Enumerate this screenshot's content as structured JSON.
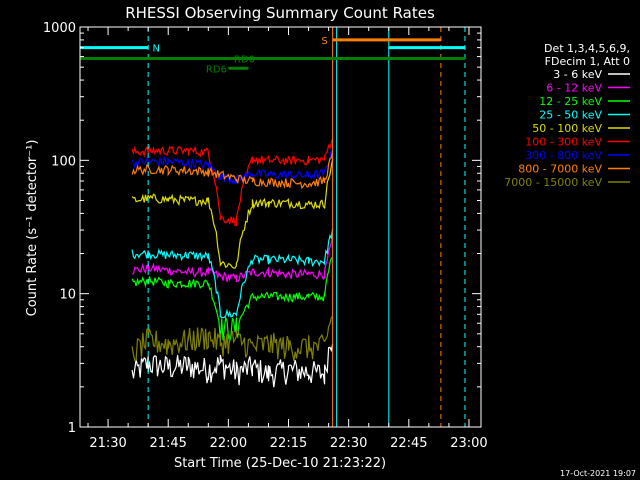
{
  "chart_data": {
    "type": "line",
    "title": "RHESSI Observing Summary Count Rates",
    "xlabel": "Start Time (25-Dec-10 21:23:22)",
    "ylabel": "Count Rate (s⁻¹ detector⁻¹)",
    "y_scale": "log",
    "ylim": [
      1,
      1000
    ],
    "xlim": [
      "21:23",
      "23:03"
    ],
    "x_ticks": [
      "21:30",
      "21:45",
      "22:00",
      "22:15",
      "22:30",
      "22:45",
      "23:00"
    ],
    "y_ticks": [
      "1",
      "10",
      "100",
      "1000"
    ],
    "grid": false,
    "legend_position": "right",
    "legend_header": [
      "Det 1,3,4,5,6,9,",
      "FDecim 1, Att 0"
    ],
    "series": [
      {
        "name": "3 - 6 keV",
        "color": "#ffffff",
        "x": [
          "21:36",
          "21:40",
          "21:45",
          "21:50",
          "21:55",
          "21:58",
          "22:02",
          "22:06",
          "22:10",
          "22:15",
          "22:20",
          "22:24",
          "22:26"
        ],
        "y": [
          2.5,
          3.0,
          2.8,
          2.9,
          2.7,
          3.0,
          2.6,
          2.8,
          2.5,
          2.7,
          2.6,
          2.5,
          5
        ]
      },
      {
        "name": "6 - 12 keV",
        "color": "#ff00ff",
        "x": [
          "21:36",
          "21:40",
          "21:45",
          "21:50",
          "21:55",
          "21:58",
          "22:02",
          "22:06",
          "22:10",
          "22:15",
          "22:20",
          "22:24",
          "22:26"
        ],
        "y": [
          15,
          15.5,
          15,
          14.5,
          14.5,
          13.5,
          13,
          14.5,
          14.5,
          14,
          14,
          14,
          25
        ]
      },
      {
        "name": "12 - 25 keV",
        "color": "#00ff00",
        "x": [
          "21:36",
          "21:40",
          "21:45",
          "21:50",
          "21:55",
          "21:58",
          "22:02",
          "22:06",
          "22:10",
          "22:15",
          "22:20",
          "22:24",
          "22:26"
        ],
        "y": [
          12,
          12.5,
          12,
          12,
          12,
          5.5,
          5.5,
          9.5,
          9.5,
          9.5,
          9.5,
          9.5,
          20
        ]
      },
      {
        "name": "25 - 50 keV",
        "color": "#00ffff",
        "x": [
          "21:36",
          "21:40",
          "21:45",
          "21:50",
          "21:55",
          "21:58",
          "22:02",
          "22:06",
          "22:10",
          "22:15",
          "22:20",
          "22:24",
          "22:26"
        ],
        "y": [
          20,
          20,
          19.5,
          19.5,
          19,
          7,
          7,
          18,
          18,
          18,
          17.5,
          17.5,
          30
        ]
      },
      {
        "name": "50 - 100 keV",
        "color": "#dddd00",
        "x": [
          "21:36",
          "21:40",
          "21:45",
          "21:50",
          "21:55",
          "21:58",
          "22:02",
          "22:06",
          "22:10",
          "22:15",
          "22:20",
          "22:24",
          "22:26"
        ],
        "y": [
          50,
          52,
          51,
          50,
          50,
          17,
          16,
          48,
          48,
          48,
          47,
          47,
          100
        ]
      },
      {
        "name": "100 - 300 keV",
        "color": "#ff0000",
        "x": [
          "21:36",
          "21:40",
          "21:45",
          "21:50",
          "21:55",
          "21:58",
          "22:02",
          "22:06",
          "22:10",
          "22:15",
          "22:20",
          "22:24",
          "22:26"
        ],
        "y": [
          115,
          118,
          118,
          118,
          115,
          37,
          35,
          102,
          100,
          100,
          100,
          102,
          150
        ]
      },
      {
        "name": "300 - 800 keV",
        "color": "#0000ff",
        "x": [
          "21:36",
          "21:40",
          "21:45",
          "21:50",
          "21:55",
          "21:58",
          "22:02",
          "22:06",
          "22:10",
          "22:15",
          "22:20",
          "22:24",
          "22:26"
        ],
        "y": [
          96,
          98,
          98,
          96,
          92,
          75,
          72,
          80,
          78,
          78,
          77,
          80,
          120
        ]
      },
      {
        "name": "800 - 7000 keV",
        "color": "#ff7f00",
        "x": [
          "21:36",
          "21:40",
          "21:45",
          "21:50",
          "21:55",
          "21:58",
          "22:02",
          "22:06",
          "22:10",
          "22:15",
          "22:20",
          "22:24",
          "22:26"
        ],
        "y": [
          84,
          86,
          85,
          84,
          82,
          78,
          73,
          70,
          69,
          68,
          67,
          70,
          110
        ]
      },
      {
        "name": "7000 - 15000 keV",
        "color": "#808000",
        "x": [
          "21:36",
          "21:40",
          "21:45",
          "21:50",
          "21:55",
          "21:58",
          "22:02",
          "22:06",
          "22:10",
          "22:15",
          "22:20",
          "22:24",
          "22:26"
        ],
        "y": [
          3.5,
          4.5,
          4.2,
          4.5,
          4.8,
          4.3,
          4.6,
          4.0,
          4.2,
          4.0,
          4.0,
          4.0,
          7
        ]
      }
    ],
    "annotations": {
      "bars": [
        {
          "label": "N",
          "color": "#00ffff",
          "y": 700,
          "segments": [
            [
              "21:23",
              "21:40"
            ],
            [
              "22:40",
              "22:59"
            ]
          ],
          "label_at": "21:42"
        },
        {
          "label": "S",
          "color": "#ff7f00",
          "y": 800,
          "segments": [
            [
              "22:26",
              "22:53"
            ]
          ],
          "label_at": "22:24"
        },
        {
          "label": "RD0",
          "color": "#008000",
          "y": 580,
          "segments": [
            [
              "21:23",
              "22:59"
            ]
          ],
          "label_at": "22:04"
        },
        {
          "label": "RD6",
          "color": "#008000",
          "y": 490,
          "segments": [
            [
              "22:00",
              "22:05"
            ]
          ],
          "label_at": "21:57"
        }
      ],
      "vlines": [
        {
          "x": "21:23",
          "color": "#00ffff",
          "style": "solid"
        },
        {
          "x": "21:40",
          "color": "#00ffff",
          "style": "dashed"
        },
        {
          "x": "22:26",
          "color": "#ff7f00",
          "style": "solid"
        },
        {
          "x": "22:27",
          "color": "#00ffff",
          "style": "solid"
        },
        {
          "x": "22:40",
          "color": "#00ffff",
          "style": "solid"
        },
        {
          "x": "22:53",
          "color": "#ff7f00",
          "style": "dashed"
        },
        {
          "x": "22:59",
          "color": "#00ffff",
          "style": "dashed"
        }
      ]
    },
    "footer_date": "17-Oct-2021 19:07"
  }
}
